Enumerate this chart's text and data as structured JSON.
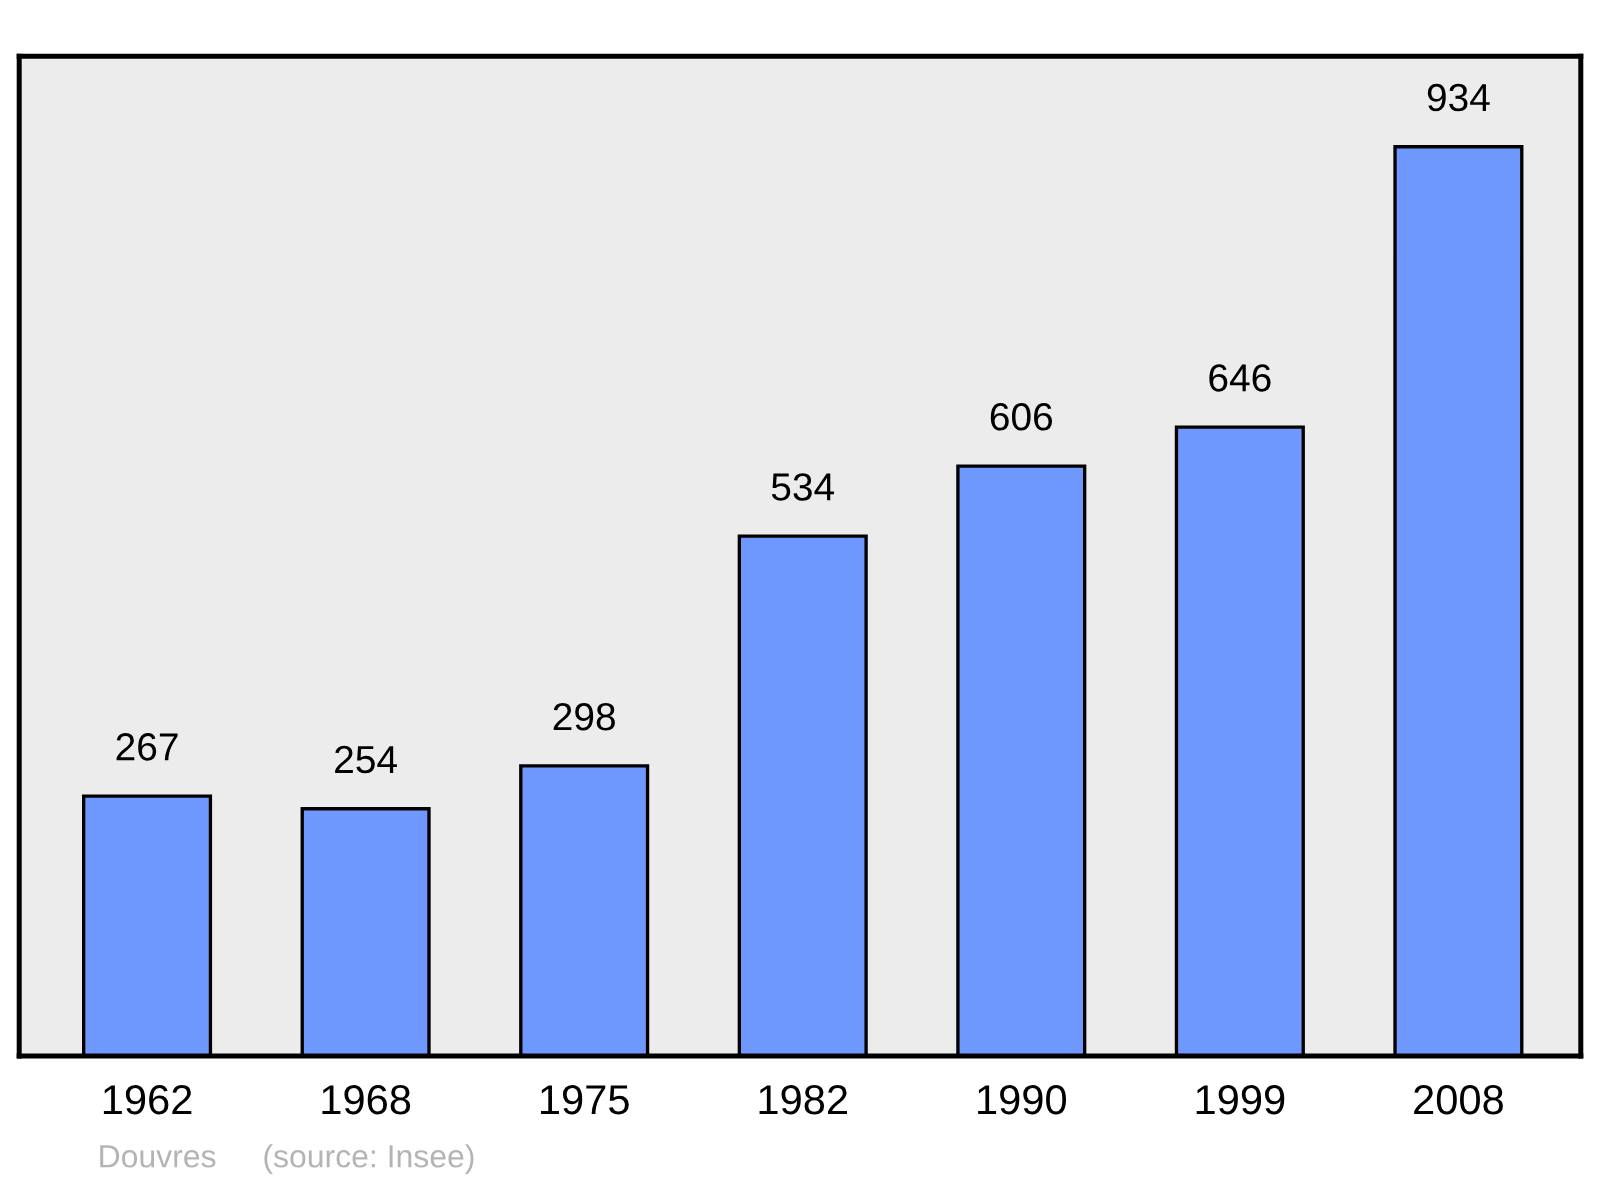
{
  "chart_data": {
    "type": "bar",
    "categories": [
      "1962",
      "1968",
      "1975",
      "1982",
      "1990",
      "1999",
      "2008"
    ],
    "values": [
      267,
      254,
      298,
      534,
      606,
      646,
      934
    ],
    "color": "#6f98ff",
    "ylim": [
      0,
      1027
    ],
    "data_labels": true,
    "grid": false,
    "tick_labels": "x",
    "annotations": [
      "Douvres",
      "(source: Insee)"
    ]
  }
}
